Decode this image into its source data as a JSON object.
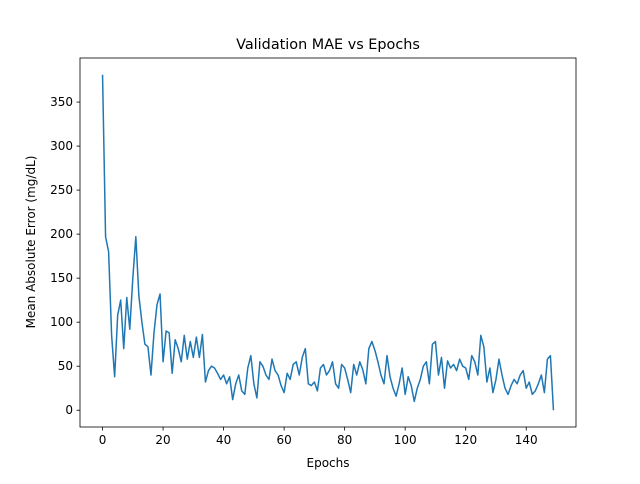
{
  "chart_data": {
    "type": "line",
    "title": "Validation MAE vs Epochs",
    "xlabel": "Epochs",
    "ylabel": "Mean Absolute Error (mg/dL)",
    "x": [
      0,
      1,
      2,
      3,
      4,
      5,
      6,
      7,
      8,
      9,
      10,
      11,
      12,
      13,
      14,
      15,
      16,
      17,
      18,
      19,
      20,
      21,
      22,
      23,
      24,
      25,
      26,
      27,
      28,
      29,
      30,
      31,
      32,
      33,
      34,
      35,
      36,
      37,
      38,
      39,
      40,
      41,
      42,
      43,
      44,
      45,
      46,
      47,
      48,
      49,
      50,
      51,
      52,
      53,
      54,
      55,
      56,
      57,
      58,
      59,
      60,
      61,
      62,
      63,
      64,
      65,
      66,
      67,
      68,
      69,
      70,
      71,
      72,
      73,
      74,
      75,
      76,
      77,
      78,
      79,
      80,
      81,
      82,
      83,
      84,
      85,
      86,
      87,
      88,
      89,
      90,
      91,
      92,
      93,
      94,
      95,
      96,
      97,
      98,
      99,
      100,
      101,
      102,
      103,
      104,
      105,
      106,
      107,
      108,
      109,
      110,
      111,
      112,
      113,
      114,
      115,
      116,
      117,
      118,
      119,
      120,
      121,
      122,
      123,
      124,
      125,
      126,
      127,
      128,
      129,
      130,
      131,
      132,
      133,
      134,
      135,
      136,
      137,
      138,
      139,
      140,
      141,
      142,
      143,
      144,
      145,
      146,
      147,
      148,
      149
    ],
    "values": [
      381,
      197,
      180,
      85,
      38,
      108,
      125,
      70,
      128,
      92,
      150,
      197,
      130,
      100,
      75,
      72,
      40,
      88,
      120,
      132,
      55,
      90,
      88,
      42,
      80,
      70,
      55,
      85,
      58,
      78,
      60,
      83,
      60,
      86,
      32,
      45,
      50,
      48,
      42,
      35,
      40,
      30,
      38,
      12,
      30,
      40,
      22,
      18,
      48,
      62,
      30,
      14,
      55,
      50,
      40,
      35,
      58,
      45,
      40,
      28,
      20,
      42,
      35,
      52,
      55,
      40,
      60,
      70,
      30,
      28,
      32,
      22,
      48,
      52,
      40,
      45,
      55,
      30,
      25,
      52,
      48,
      35,
      20,
      52,
      40,
      55,
      46,
      30,
      70,
      78,
      68,
      55,
      40,
      30,
      62,
      38,
      25,
      16,
      30,
      48,
      18,
      38,
      28,
      10,
      25,
      35,
      50,
      55,
      30,
      75,
      78,
      40,
      60,
      25,
      56,
      48,
      52,
      45,
      58,
      50,
      48,
      35,
      62,
      55,
      40,
      85,
      72,
      32,
      48,
      20,
      35,
      58,
      40,
      25,
      18,
      28,
      35,
      30,
      40,
      45,
      25,
      32,
      18,
      22,
      30,
      40,
      20,
      58,
      62,
      0
    ],
    "color": "#1f77b4",
    "xlim": [
      -7.45,
      156.45
    ],
    "xticks": [
      0,
      20,
      40,
      60,
      80,
      100,
      120,
      140
    ],
    "ylim": [
      -19.05,
      400.05
    ],
    "yticks": [
      0,
      50,
      100,
      150,
      200,
      250,
      300,
      350
    ]
  }
}
